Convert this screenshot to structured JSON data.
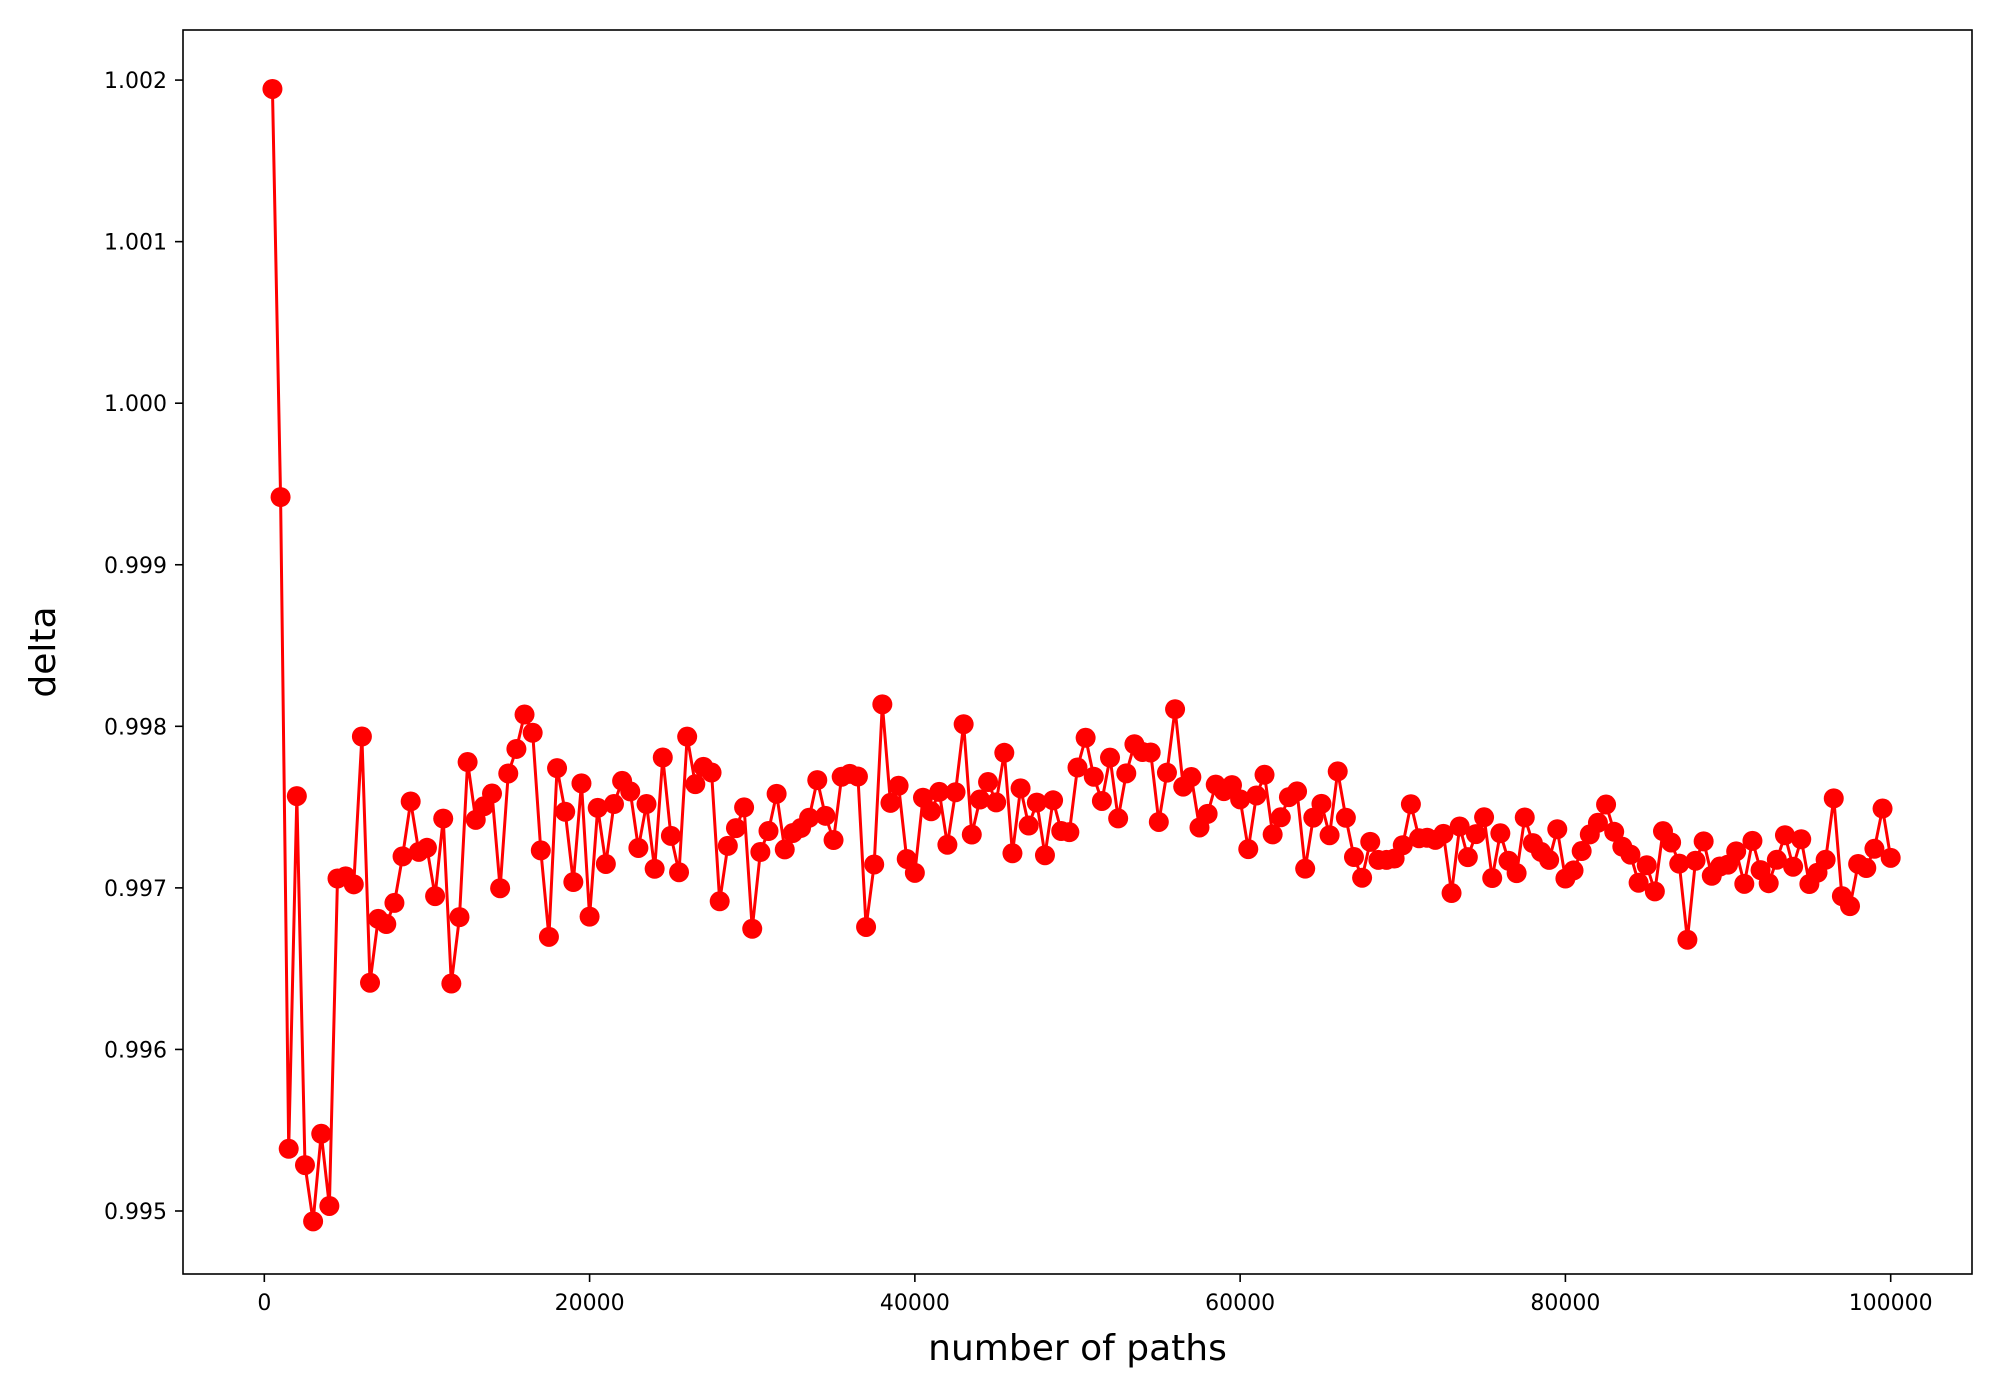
{
  "chart_data": {
    "type": "line",
    "title": "",
    "xlabel": "number of paths",
    "ylabel": "delta",
    "xlim": [
      -5000,
      105000
    ],
    "ylim": [
      0.99461,
      1.00231
    ],
    "grid": false,
    "x_ticks": [
      0,
      20000,
      40000,
      60000,
      80000,
      100000
    ],
    "x_tick_labels": [
      "0",
      "20000",
      "40000",
      "60000",
      "80000",
      "100000"
    ],
    "y_ticks": [
      0.995,
      0.996,
      0.997,
      0.998,
      0.999,
      1.0,
      1.001,
      1.002
    ],
    "y_tick_labels": [
      "0.995",
      "0.996",
      "0.997",
      "0.998",
      "0.999",
      "1.000",
      "1.001",
      "1.002"
    ],
    "marker": "circle",
    "color": "#ff0000",
    "x_start": 500,
    "x_step": 500,
    "series": [
      {
        "values": [
          1.001945,
          0.999419,
          0.995385,
          0.997568,
          0.995284,
          0.994936,
          0.995478,
          0.995031,
          0.997058,
          0.997071,
          0.997022,
          0.997937,
          0.996413,
          0.996808,
          0.996776,
          0.996907,
          0.997195,
          0.997535,
          0.997223,
          0.997248,
          0.996949,
          0.997429,
          0.996408,
          0.996819,
          0.997779,
          0.997421,
          0.997505,
          0.997584,
          0.996998,
          0.997708,
          0.99786,
          0.998073,
          0.99796,
          0.997232,
          0.996697,
          0.997741,
          0.997471,
          0.997036,
          0.997647,
          0.996822,
          0.997495,
          0.997148,
          0.997519,
          0.997662,
          0.997597,
          0.997247,
          0.997519,
          0.997118,
          0.997807,
          0.997322,
          0.997097,
          0.997936,
          0.997642,
          0.997749,
          0.997714,
          0.996917,
          0.99726,
          0.99737,
          0.997498,
          0.996747,
          0.997222,
          0.997352,
          0.997582,
          0.997238,
          0.99734,
          0.997371,
          0.997434,
          0.997667,
          0.997446,
          0.997296,
          0.997688,
          0.997706,
          0.997689,
          0.996758,
          0.997145,
          0.998136,
          0.997526,
          0.997632,
          0.997179,
          0.997093,
          0.997558,
          0.997474,
          0.997594,
          0.997267,
          0.997592,
          0.998013,
          0.99733,
          0.997547,
          0.997655,
          0.997529,
          0.997836,
          0.997214,
          0.997616,
          0.997386,
          0.997528,
          0.997202,
          0.997542,
          0.997352,
          0.997345,
          0.997745,
          0.997929,
          0.997688,
          0.997538,
          0.997806,
          0.99743,
          0.997709,
          0.997889,
          0.997841,
          0.997838,
          0.997408,
          0.997713,
          0.998106,
          0.997627,
          0.997686,
          0.997374,
          0.997458,
          0.997639,
          0.997599,
          0.997636,
          0.997548,
          0.99724,
          0.997572,
          0.9977,
          0.997331,
          0.997437,
          0.997562,
          0.997597,
          0.997119,
          0.997435,
          0.99752,
          0.997326,
          0.997721,
          0.997434,
          0.997191,
          0.997063,
          0.997285,
          0.997173,
          0.997173,
          0.997182,
          0.997264,
          0.997518,
          0.997307,
          0.99731,
          0.997297,
          0.997334,
          0.996968,
          0.99738,
          0.99719,
          0.997333,
          0.997437,
          0.997061,
          0.997338,
          0.997168,
          0.997091,
          0.997436,
          0.997277,
          0.997223,
          0.997173,
          0.997363,
          0.997058,
          0.997108,
          0.997228,
          0.997331,
          0.997403,
          0.997516,
          0.997347,
          0.997255,
          0.997206,
          0.997032,
          0.99714,
          0.996978,
          0.997351,
          0.997281,
          0.99715,
          0.996679,
          0.997168,
          0.997288,
          0.997075,
          0.997132,
          0.997144,
          0.997226,
          0.997025,
          0.997291,
          0.99711,
          0.997029,
          0.997174,
          0.997326,
          0.997131,
          0.997301,
          0.997024,
          0.997094,
          0.997174,
          0.997554,
          0.996949,
          0.996887,
          0.997148,
          0.997123,
          0.997242,
          0.997491,
          0.997186
        ]
      }
    ]
  }
}
